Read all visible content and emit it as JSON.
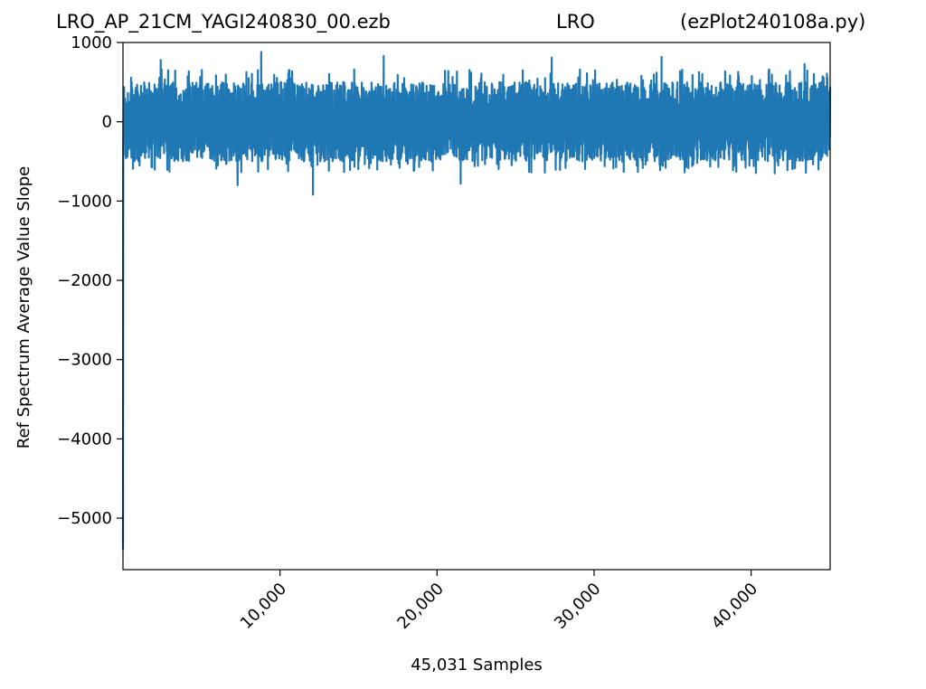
{
  "titles": {
    "left": "LRO_AP_21CM_YAGI240830_00.ezb",
    "center": "LRO",
    "right": "(ezPlot240108a.py)"
  },
  "chart_data": {
    "type": "line",
    "xlabel": "45,031 Samples",
    "ylabel": "Ref Spectrum Average Value Slope",
    "xlim": [
      0,
      45031
    ],
    "ylim": [
      -5650,
      1000
    ],
    "xticks": [
      10000,
      20000,
      30000,
      40000
    ],
    "xtick_labels": [
      "10,000",
      "20,000",
      "30,000",
      "40,000"
    ],
    "yticks": [
      1000,
      0,
      -1000,
      -2000,
      -3000,
      -4000,
      -5000
    ],
    "ytick_labels": [
      "1000",
      "0",
      "−1000",
      "−2000",
      "−3000",
      "−4000",
      "−5000"
    ],
    "series": [
      {
        "color": "#1f77b4",
        "band": {
          "typical_max": 500,
          "typical_min": -500
        },
        "start_value": -5400,
        "peaks": [
          [
            2400,
            780
          ],
          [
            8800,
            880
          ],
          [
            16600,
            830
          ],
          [
            27300,
            810
          ],
          [
            34300,
            820
          ],
          [
            43400,
            730
          ]
        ],
        "troughs": [
          [
            7300,
            -800
          ],
          [
            12100,
            -920
          ],
          [
            21500,
            -780
          ],
          [
            26000,
            -640
          ],
          [
            41500,
            -650
          ]
        ]
      }
    ]
  }
}
